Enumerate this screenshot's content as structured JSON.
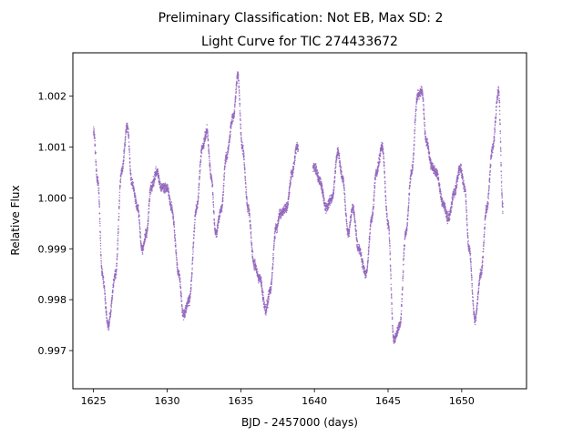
{
  "figure": {
    "suptitle": "Preliminary Classification: Not EB, Max SD: 2"
  },
  "chart_data": {
    "type": "scatter",
    "title": "Light Curve for TIC 274433672",
    "xlabel": "BJD - 2457000 (days)",
    "ylabel": "Relative Flux",
    "xlim": [
      1623.6,
      1654.4
    ],
    "ylim": [
      0.99625,
      1.00285
    ],
    "xticks": [
      1625,
      1630,
      1635,
      1640,
      1645,
      1650
    ],
    "xtick_labels": [
      "1625",
      "1630",
      "1635",
      "1640",
      "1645",
      "1650"
    ],
    "yticks": [
      0.997,
      0.998,
      0.999,
      1.0,
      1.001,
      1.002
    ],
    "ytick_labels": [
      "0.997",
      "0.998",
      "0.999",
      "1.000",
      "1.001",
      "1.002"
    ],
    "grid": false,
    "legend": "none",
    "marker_color": "#9467bd",
    "series": [
      {
        "gap": [
          1638.9,
          1639.9
        ],
        "x": [
          1625.0,
          1625.3,
          1625.6,
          1626.0,
          1626.5,
          1626.9,
          1627.3,
          1627.6,
          1628.0,
          1628.3,
          1628.6,
          1628.9,
          1629.3,
          1629.6,
          1630.0,
          1630.3,
          1630.8,
          1631.1,
          1631.5,
          1632.0,
          1632.4,
          1632.7,
          1633.0,
          1633.3,
          1633.7,
          1634.0,
          1634.5,
          1634.8,
          1635.1,
          1635.5,
          1635.9,
          1636.3,
          1636.7,
          1637.0,
          1637.4,
          1637.7,
          1638.1,
          1638.5,
          1638.8,
          1640.0,
          1640.4,
          1640.8,
          1641.2,
          1641.6,
          1641.9,
          1642.3,
          1642.6,
          1643.0,
          1643.5,
          1643.9,
          1644.2,
          1644.6,
          1645.0,
          1645.4,
          1645.8,
          1646.2,
          1646.6,
          1647.0,
          1647.3,
          1647.6,
          1648.0,
          1648.3,
          1648.7,
          1649.1,
          1649.5,
          1649.9,
          1650.2,
          1650.5,
          1650.9,
          1651.3,
          1651.7,
          1652.1,
          1652.5,
          1652.8
        ],
        "y": [
          1.0013,
          1.0003,
          0.9985,
          0.9975,
          0.9985,
          1.0005,
          1.0014,
          1.0003,
          0.9998,
          0.999,
          0.9993,
          1.0002,
          1.0005,
          1.0002,
          1.0002,
          0.9998,
          0.9985,
          0.9977,
          0.998,
          0.9998,
          1.001,
          1.0013,
          1.0004,
          0.9993,
          0.9998,
          1.0008,
          1.0016,
          1.0024,
          1.001,
          0.9998,
          0.9987,
          0.9984,
          0.9978,
          0.9982,
          0.9994,
          0.9997,
          0.9998,
          1.0005,
          1.001,
          1.0006,
          1.0003,
          0.9998,
          1.0,
          1.0009,
          1.0004,
          0.9993,
          0.9998,
          0.999,
          0.9985,
          0.9996,
          1.0005,
          1.001,
          0.9995,
          0.9972,
          0.9975,
          0.9993,
          1.0005,
          1.002,
          1.0021,
          1.0011,
          1.0006,
          1.0005,
          0.9999,
          0.9996,
          1.0001,
          1.0006,
          1.0002,
          0.999,
          0.9976,
          0.9985,
          0.9998,
          1.001,
          1.0021,
          0.9998
        ]
      }
    ]
  }
}
